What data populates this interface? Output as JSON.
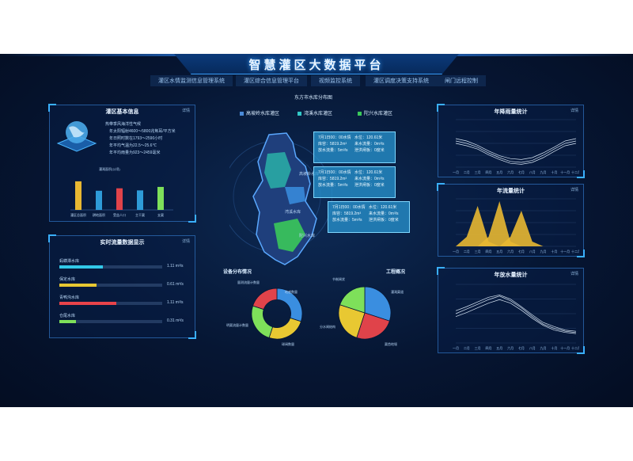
{
  "title": "智慧灌区大数据平台",
  "nav": [
    "灌区水情监测信息管理系统",
    "灌区综合信息管理平台",
    "视频监控系统",
    "灌区调度决策支持系统",
    "闸门远程控制"
  ],
  "more_label": "详情",
  "basic_info": {
    "title": "灌区基本信息",
    "lines": [
      "热带季风海洋性气候",
      "年太阳辐射4600～5800兆焦耳/平方米",
      "年日照时数在1793～2590小时",
      "年平均气温为22.5～25.6℃",
      "年平均雨量为923～2459毫米"
    ],
    "chart_label": "灌溉面积(公顷)",
    "categories": [
      "灌区总面积",
      "耕地面积",
      "受益人口",
      "主干渠",
      "支渠"
    ],
    "values": [
      0.82,
      0.55,
      0.62,
      0.56,
      0.66
    ],
    "colors": [
      "#e8b832",
      "#2e9bd8",
      "#e0434a",
      "#2e9bd8",
      "#7ee05a"
    ]
  },
  "flow": {
    "title": "实时流量数据显示",
    "items": [
      {
        "name": "蚂蟥潭水库",
        "value": "1.11 m³/s",
        "pct": 0.42,
        "color": "#32c8e8"
      },
      {
        "name": "保定水库",
        "value": "0.61 m³/s",
        "pct": 0.36,
        "color": "#e8c832"
      },
      {
        "name": "青鸭沟水库",
        "value": "1.11 m³/s",
        "pct": 0.55,
        "color": "#e8434a"
      },
      {
        "name": "仓尾水库",
        "value": "0.31 m³/s",
        "pct": 0.16,
        "color": "#7ee05a"
      }
    ]
  },
  "map": {
    "title": "东方市水库分布图",
    "legend": [
      {
        "label": "高坡岭水库灌区",
        "color": "#4a8ad8"
      },
      {
        "label": "湾溪水库灌区",
        "color": "#32c8c8"
      },
      {
        "label": "陀兴水库灌区",
        "color": "#3ac85a"
      }
    ],
    "cards": [
      {
        "time": "7月1日00：00水情",
        "level": "水位：120.61米",
        "cap": "库容：5819.2m³",
        "in": "来水流量：0m³/s",
        "out": "放水流量：5m³/s",
        "drain": "泄洪闸板：0度米"
      },
      {
        "time": "7月1日00：00水情",
        "level": "水位：120.61米",
        "cap": "库容：5819.2m³",
        "in": "来水流量：0m³/s",
        "out": "放水流量：5m³/s",
        "drain": "泄洪闸板：0度米"
      },
      {
        "time": "7月1日00：00水情",
        "level": "水位：120.61米",
        "cap": "库容：5819.2m³",
        "in": "来水流量：0m³/s",
        "out": "放水流量：5m³/s",
        "drain": "泄洪闸板：0度米"
      }
    ],
    "place_labels": [
      "湾溪水库",
      "陀兴水库",
      "高坡岭水库"
    ]
  },
  "devices": {
    "title": "设备分布情况",
    "labels": [
      "量测流量计数量",
      "地感数量",
      "明渠流量计数量",
      "球阀数量"
    ],
    "values": [
      30,
      25,
      25,
      20
    ],
    "colors": [
      "#3a8ee0",
      "#e8c832",
      "#7ee05a",
      "#e0434a"
    ]
  },
  "project": {
    "title": "工程概况",
    "labels": [
      "节制闸状",
      "灌溉渠道",
      "分水闸结构",
      "渠首地堰"
    ],
    "values": [
      30,
      25,
      25,
      20
    ],
    "colors": [
      "#3a8ee0",
      "#e0434a",
      "#e8c832",
      "#7ee05a"
    ]
  },
  "rain": {
    "title": "年降雨量统计"
  },
  "runoff": {
    "title": "年流量统计"
  },
  "release": {
    "title": "年放水量统计"
  },
  "months": [
    "一月",
    "二月",
    "三月",
    "四月",
    "五月",
    "六月",
    "七月",
    "八月",
    "九月",
    "十月",
    "十一月",
    "十二月"
  ]
}
